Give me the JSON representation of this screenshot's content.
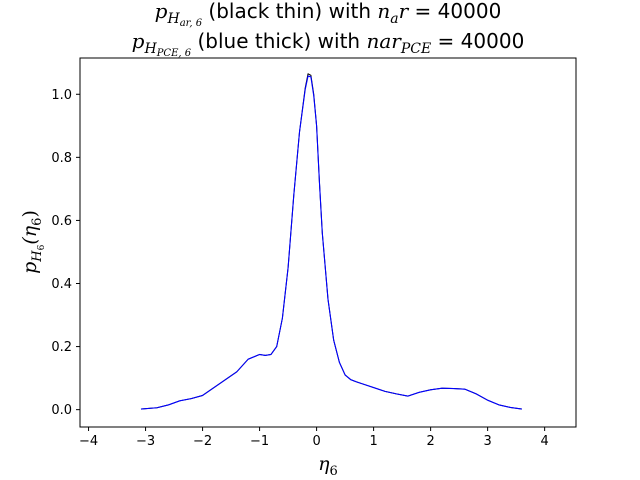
{
  "chart_data": {
    "type": "line",
    "title_lines": [
      {
        "sym": "p",
        "sub": "H",
        "subsub": "ar, 6",
        "desc": " (black thin) with ",
        "var": "n",
        "var_sub": "a",
        "var_tail": "r",
        "eq": " = 40000"
      },
      {
        "sym": "p",
        "sub": "H",
        "subsub": "PCE, 6",
        "desc": " (blue thick) with ",
        "var": "nar",
        "var_sub": "PCE",
        "var_tail": "",
        "eq": " = 40000"
      }
    ],
    "xlabel": {
      "sym": "η",
      "sub": "6"
    },
    "ylabel": {
      "sym": "p",
      "sub": "H",
      "subsub": "6",
      "arg": "(η",
      "arg_sub": "6",
      "close": ")"
    },
    "xlim": [
      -4.15,
      4.55
    ],
    "ylim": [
      -0.055,
      1.115
    ],
    "x_ticks": [
      -4,
      -3,
      -2,
      -1,
      0,
      1,
      2,
      3,
      4
    ],
    "x_tick_labels": [
      "−4",
      "−3",
      "−2",
      "−1",
      "0",
      "1",
      "2",
      "3",
      "4"
    ],
    "y_ticks": [
      0.0,
      0.2,
      0.4,
      0.6,
      0.8,
      1.0
    ],
    "y_tick_labels": [
      "0.0",
      "0.2",
      "0.4",
      "0.6",
      "0.8",
      "1.0"
    ],
    "grid": false,
    "colors": {
      "ar": "#000000",
      "pce": "#0000ff"
    },
    "series": [
      {
        "key": "ar",
        "stroke": "thin",
        "x": [
          -3.08,
          -2.8,
          -2.6,
          -2.4,
          -2.2,
          -2.0,
          -1.8,
          -1.6,
          -1.4,
          -1.2,
          -1.0,
          -0.9,
          -0.8,
          -0.7,
          -0.6,
          -0.5,
          -0.4,
          -0.3,
          -0.2,
          -0.15,
          -0.1,
          -0.05,
          0.0,
          0.05,
          0.1,
          0.2,
          0.3,
          0.4,
          0.5,
          0.6,
          0.7,
          0.8,
          1.0,
          1.2,
          1.4,
          1.6,
          1.8,
          2.0,
          2.2,
          2.4,
          2.6,
          2.8,
          3.0,
          3.2,
          3.4,
          3.6
        ],
        "y": [
          0.002,
          0.006,
          0.015,
          0.028,
          0.035,
          0.045,
          0.07,
          0.095,
          0.12,
          0.16,
          0.175,
          0.172,
          0.175,
          0.2,
          0.29,
          0.45,
          0.68,
          0.88,
          1.02,
          1.065,
          1.06,
          1.0,
          0.9,
          0.72,
          0.56,
          0.35,
          0.22,
          0.15,
          0.11,
          0.095,
          0.088,
          0.082,
          0.07,
          0.058,
          0.05,
          0.043,
          0.055,
          0.063,
          0.068,
          0.067,
          0.065,
          0.05,
          0.03,
          0.015,
          0.007,
          0.002
        ]
      },
      {
        "key": "pce",
        "stroke": "thick",
        "x": [
          -3.08,
          -2.8,
          -2.6,
          -2.4,
          -2.2,
          -2.0,
          -1.8,
          -1.6,
          -1.4,
          -1.2,
          -1.0,
          -0.9,
          -0.8,
          -0.7,
          -0.6,
          -0.5,
          -0.4,
          -0.3,
          -0.2,
          -0.15,
          -0.1,
          -0.05,
          0.0,
          0.05,
          0.1,
          0.2,
          0.3,
          0.4,
          0.5,
          0.6,
          0.7,
          0.8,
          1.0,
          1.2,
          1.4,
          1.6,
          1.8,
          2.0,
          2.2,
          2.4,
          2.6,
          2.8,
          3.0,
          3.2,
          3.4,
          3.6
        ],
        "y": [
          0.002,
          0.006,
          0.015,
          0.028,
          0.035,
          0.045,
          0.07,
          0.095,
          0.12,
          0.16,
          0.175,
          0.172,
          0.175,
          0.2,
          0.29,
          0.45,
          0.68,
          0.88,
          1.015,
          1.058,
          1.055,
          0.995,
          0.9,
          0.72,
          0.56,
          0.35,
          0.22,
          0.15,
          0.11,
          0.095,
          0.088,
          0.082,
          0.07,
          0.058,
          0.05,
          0.043,
          0.055,
          0.063,
          0.068,
          0.067,
          0.065,
          0.05,
          0.03,
          0.015,
          0.007,
          0.002
        ]
      }
    ]
  }
}
